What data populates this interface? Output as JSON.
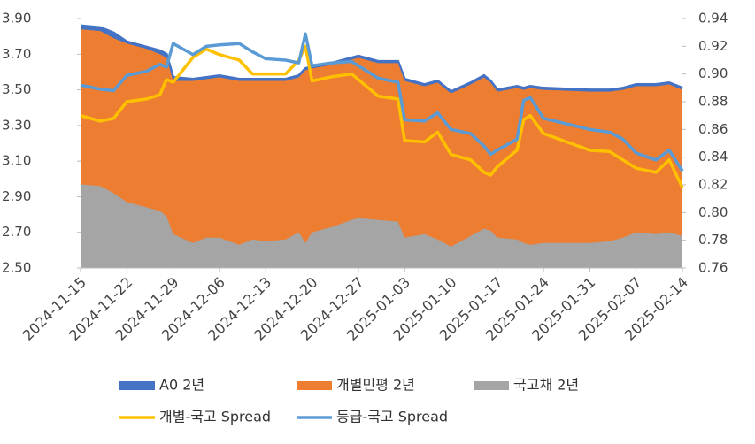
{
  "chart_data": {
    "type": "area-line",
    "x": [
      "2024-11-15",
      "2024-11-18",
      "2024-11-20",
      "2024-11-22",
      "2024-11-25",
      "2024-11-27",
      "2024-11-28",
      "2024-11-29",
      "2024-12-02",
      "2024-12-04",
      "2024-12-06",
      "2024-12-09",
      "2024-12-11",
      "2024-12-13",
      "2024-12-16",
      "2024-12-18",
      "2024-12-19",
      "2024-12-20",
      "2024-12-23",
      "2024-12-26",
      "2024-12-27",
      "2024-12-30",
      "2025-01-02",
      "2025-01-03",
      "2025-01-06",
      "2025-01-08",
      "2025-01-10",
      "2025-01-13",
      "2025-01-15",
      "2025-01-16",
      "2025-01-17",
      "2025-01-20",
      "2025-01-21",
      "2025-01-22",
      "2025-01-24",
      "2025-01-31",
      "2025-02-03",
      "2025-02-05",
      "2025-02-07",
      "2025-02-10",
      "2025-02-12",
      "2025-02-14"
    ],
    "xlim": [
      "2024-11-15",
      "2025-02-14"
    ],
    "xticks": [
      "2024-11-15",
      "2024-11-22",
      "2024-11-29",
      "2024-12-06",
      "2024-12-13",
      "2024-12-20",
      "2024-12-27",
      "2025-01-03",
      "2025-01-10",
      "2025-01-17",
      "2025-01-24",
      "2025-01-31",
      "2025-02-07",
      "2025-02-14"
    ],
    "ylim": [
      2.5,
      3.9
    ],
    "yticks": [
      {
        "value": 2.5,
        "label": "2.50"
      },
      {
        "value": 2.7,
        "label": "2.70"
      },
      {
        "value": 2.9,
        "label": "2.90"
      },
      {
        "value": 3.1,
        "label": "3.10"
      },
      {
        "value": 3.3,
        "label": "3.30"
      },
      {
        "value": 3.5,
        "label": "3.50"
      },
      {
        "value": 3.7,
        "label": "3.70"
      },
      {
        "value": 3.9,
        "label": "3.90"
      }
    ],
    "y2lim": [
      0.76,
      0.94
    ],
    "y2ticks": [
      0.76,
      0.78,
      {
        "value": 0.8,
        "label": "0.80"
      },
      0.82,
      0.84,
      0.86,
      0.88,
      {
        "value": 0.9,
        "label": "0.90"
      },
      0.92,
      0.94
    ],
    "series": [
      {
        "name": "A0 2년",
        "color": "#4472c4",
        "kind": "area",
        "values": [
          3.86,
          3.85,
          3.82,
          3.77,
          3.74,
          3.72,
          3.7,
          3.57,
          3.56,
          3.57,
          3.58,
          3.56,
          3.56,
          3.56,
          3.56,
          3.58,
          3.62,
          3.63,
          3.65,
          3.68,
          3.69,
          3.66,
          3.66,
          3.56,
          3.53,
          3.55,
          3.49,
          3.54,
          3.58,
          3.55,
          3.5,
          3.52,
          3.51,
          3.52,
          3.51,
          3.5,
          3.5,
          3.51,
          3.53,
          3.53,
          3.54,
          3.51
        ]
      },
      {
        "name": "개별민평 2년",
        "color": "#ed7d31",
        "kind": "area",
        "values": [
          3.84,
          3.83,
          3.79,
          3.76,
          3.73,
          3.7,
          3.68,
          3.55,
          3.55,
          3.56,
          3.57,
          3.55,
          3.55,
          3.55,
          3.55,
          3.57,
          3.61,
          3.62,
          3.64,
          3.67,
          3.68,
          3.65,
          3.65,
          3.55,
          3.52,
          3.54,
          3.48,
          3.53,
          3.57,
          3.54,
          3.49,
          3.51,
          3.5,
          3.51,
          3.5,
          3.49,
          3.49,
          3.5,
          3.52,
          3.52,
          3.53,
          3.5
        ]
      },
      {
        "name": "국고채 2년",
        "color": "#a5a5a5",
        "kind": "area",
        "values": [
          2.97,
          2.96,
          2.92,
          2.87,
          2.84,
          2.82,
          2.79,
          2.69,
          2.64,
          2.67,
          2.67,
          2.63,
          2.66,
          2.65,
          2.66,
          2.7,
          2.64,
          2.7,
          2.73,
          2.77,
          2.78,
          2.77,
          2.76,
          2.67,
          2.69,
          2.66,
          2.62,
          2.68,
          2.72,
          2.71,
          2.67,
          2.66,
          2.64,
          2.63,
          2.64,
          2.64,
          2.65,
          2.67,
          2.7,
          2.69,
          2.7,
          2.68
        ]
      },
      {
        "name": "개별-국고 Spread",
        "color": "#ffc000",
        "kind": "line",
        "axis": "y2",
        "values": [
          0.87,
          0.866,
          0.868,
          0.88,
          0.882,
          0.885,
          0.896,
          0.894,
          0.912,
          0.918,
          0.914,
          0.91,
          0.9,
          0.9,
          0.9,
          0.91,
          0.92,
          0.895,
          0.898,
          0.9,
          0.896,
          0.884,
          0.882,
          0.852,
          0.851,
          0.858,
          0.842,
          0.838,
          0.829,
          0.827,
          0.833,
          0.845,
          0.867,
          0.87,
          0.857,
          0.845,
          0.844,
          0.838,
          0.832,
          0.829,
          0.838,
          0.818
        ]
      },
      {
        "name": "등급-국고 Spread",
        "color": "#5b9bd5",
        "kind": "line",
        "axis": "y2",
        "values": [
          0.892,
          0.889,
          0.888,
          0.899,
          0.902,
          0.907,
          0.905,
          0.922,
          0.914,
          0.92,
          0.921,
          0.922,
          0.916,
          0.911,
          0.91,
          0.908,
          0.929,
          0.906,
          0.908,
          0.909,
          0.906,
          0.897,
          0.894,
          0.867,
          0.866,
          0.872,
          0.86,
          0.857,
          0.848,
          0.842,
          0.845,
          0.853,
          0.881,
          0.883,
          0.868,
          0.86,
          0.858,
          0.853,
          0.843,
          0.838,
          0.845,
          0.83
        ]
      }
    ]
  }
}
